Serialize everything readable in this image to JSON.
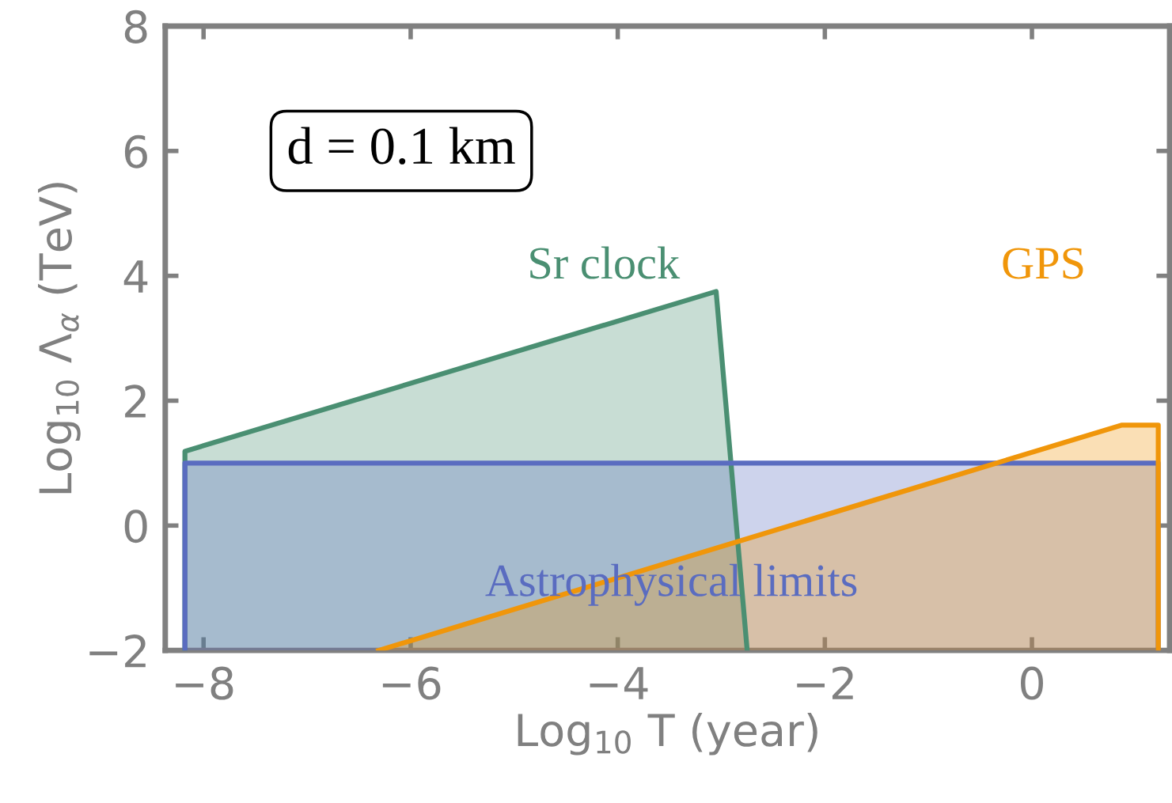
{
  "chart_data": {
    "type": "area",
    "xlabel": "Log$_{10}$ T (year)",
    "ylabel": "Log$_{10}$ Λ$_{α}$ (TeV)",
    "annotations": [
      "d = 0.1 km"
    ],
    "series": [
      {
        "name": "Sr clock",
        "color": "#4a8f72",
        "x": [
          -8.18,
          -8.18,
          -3.05,
          -2.75
        ],
        "values": [
          -2,
          1.19,
          3.75,
          -2
        ]
      },
      {
        "name": "Astrophysical limits",
        "color": "#5a6cc0",
        "x": [
          -8.18,
          -8.18,
          1.22,
          1.22
        ],
        "values": [
          -2,
          1.0,
          1.0,
          -2
        ]
      },
      {
        "name": "GPS",
        "color": "#f0960a",
        "x": [
          -6.31,
          0.87,
          1.22,
          1.22
        ],
        "values": [
          -2,
          1.61,
          1.61,
          -2
        ]
      }
    ],
    "xlim": [
      -8.37,
      1.33
    ],
    "ylim": [
      -2,
      8
    ],
    "xticks": [
      {
        "value": -8,
        "label": "−8"
      },
      {
        "value": -6,
        "label": "−6"
      },
      {
        "value": -4,
        "label": "−4"
      },
      {
        "value": -2,
        "label": "−2"
      },
      0
    ],
    "yticks": [
      {
        "value": -2,
        "label": "−2"
      },
      0,
      2,
      4,
      6,
      8
    ],
    "grid": false,
    "legend": false
  }
}
